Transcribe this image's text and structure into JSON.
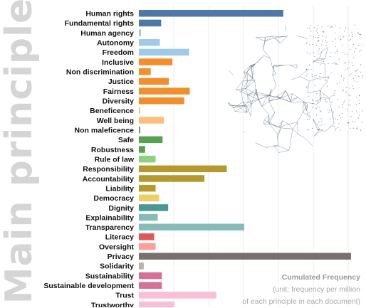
{
  "y_title": "Main principles",
  "note": {
    "title": "Cumulated Frequency",
    "line1": "(unit: frequency per million",
    "line2": "of each principle in each document)"
  },
  "chart_data": {
    "type": "bar",
    "orientation": "horizontal",
    "title": "",
    "ylabel": "Main principles",
    "xlabel": "Cumulated Frequency",
    "xlim": [
      0,
      300
    ],
    "grid": true,
    "categories": [
      "Human rights",
      "Fundamental rights",
      "Human agency",
      "Autonomy",
      "Freedom",
      "Inclusive",
      "Non discrimination",
      "Justice",
      "Fairness",
      "Diversity",
      "Beneficence",
      "Well being",
      "Non maleficence",
      "Safe",
      "Robustness",
      "Rule of law",
      "Responsibility",
      "Accountability",
      "Liability",
      "Democracy",
      "Dignity",
      "Explainability",
      "Transparency",
      "Literacy",
      "Oversight",
      "Privacy",
      "Solidarity",
      "Sustainability",
      "Sustainable development",
      "Trust",
      "Trustworthy"
    ],
    "values": [
      207,
      32,
      3,
      30,
      72,
      48,
      17,
      43,
      73,
      65,
      2,
      36,
      2,
      34,
      9,
      24,
      126,
      94,
      24,
      29,
      42,
      27,
      151,
      22,
      24,
      304,
      7,
      33,
      33,
      111,
      51
    ],
    "colors": [
      "#4e79a7",
      "#4e79a7",
      "#a0cbe8",
      "#a0cbe8",
      "#a0cbe8",
      "#f28e2b",
      "#f28e2b",
      "#f28e2b",
      "#f28e2b",
      "#f28e2b",
      "#ffbe7d",
      "#ffbe7d",
      "#59a14f",
      "#59a14f",
      "#59a14f",
      "#8cd17d",
      "#b6992d",
      "#b6992d",
      "#b6992d",
      "#f1ce63",
      "#499894",
      "#86bcb6",
      "#86bcb6",
      "#e15759",
      "#ff9d9a",
      "#79706e",
      "#bab0ac",
      "#d37295",
      "#d37295",
      "#fabfd2",
      "#fabfd2"
    ]
  }
}
